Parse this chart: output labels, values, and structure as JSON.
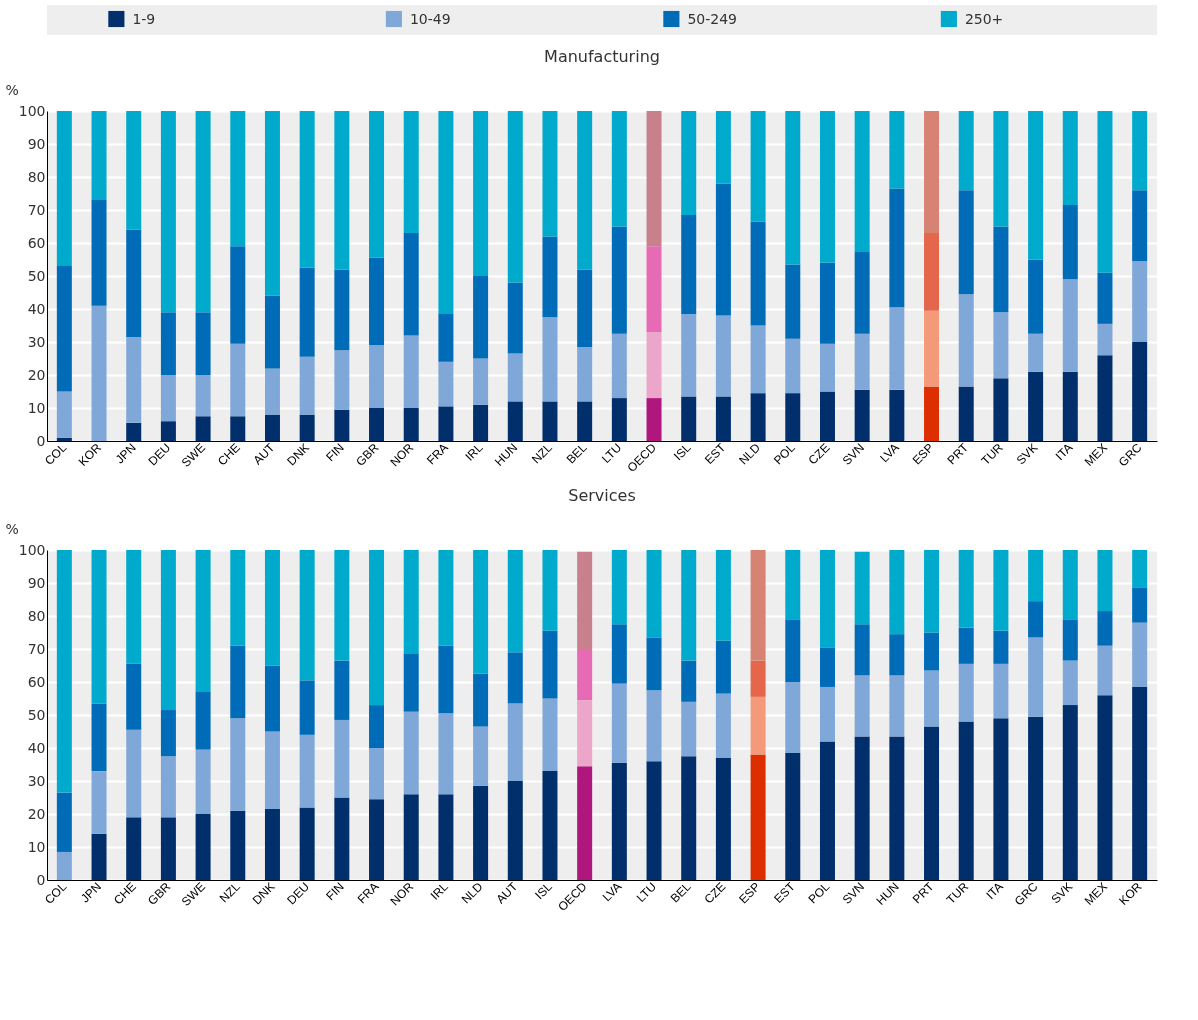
{
  "chart_data": [
    {
      "type": "bar",
      "title": "Manufacturing",
      "ylabel": "%",
      "stacked": true,
      "legend": "top",
      "grid": "y",
      "ylim": [
        0,
        100
      ],
      "yticks": [
        0,
        10,
        20,
        30,
        40,
        50,
        60,
        70,
        80,
        90,
        100
      ],
      "categories": [
        "COL",
        "KOR",
        "JPN",
        "DEU",
        "SWE",
        "CHE",
        "AUT",
        "DNK",
        "FIN",
        "GBR",
        "NOR",
        "FRA",
        "IRL",
        "HUN",
        "NZL",
        "BEL",
        "LTU",
        "OECD",
        "ISL",
        "EST",
        "NLD",
        "POL",
        "CZE",
        "SVN",
        "LVA",
        "ESP",
        "PRT",
        "TUR",
        "SVK",
        "ITA",
        "MEX",
        "GRC"
      ],
      "series": [
        {
          "name": "1-9",
          "color": "#002f6c",
          "colors": [
            "#002f6c",
            "#002f6c",
            "#002f6c",
            "#002f6c",
            "#002f6c",
            "#002f6c",
            "#002f6c",
            "#002f6c",
            "#002f6c",
            "#002f6c",
            "#002f6c",
            "#002f6c",
            "#002f6c",
            "#002f6c",
            "#002f6c",
            "#002f6c",
            "#002f6c",
            "#b0177e",
            "#002f6c",
            "#002f6c",
            "#002f6c",
            "#002f6c",
            "#002f6c",
            "#002f6c",
            "#002f6c",
            "#dd2e00",
            "#002f6c",
            "#002f6c",
            "#002f6c",
            "#002f6c",
            "#002f6c",
            "#002f6c"
          ],
          "values": [
            1,
            0,
            5.5,
            6,
            7.5,
            7.5,
            8,
            8,
            9.5,
            10,
            10,
            10.5,
            11,
            12,
            12,
            12,
            13,
            13,
            13.5,
            13.5,
            14.5,
            14.5,
            15,
            15.5,
            15.5,
            16.5,
            16.5,
            19,
            21,
            21,
            26,
            30
          ]
        },
        {
          "name": "10-49",
          "color": "#7fa8d9",
          "colors": [
            "#7fa8d9",
            "#7fa8d9",
            "#7fa8d9",
            "#7fa8d9",
            "#7fa8d9",
            "#7fa8d9",
            "#7fa8d9",
            "#7fa8d9",
            "#7fa8d9",
            "#7fa8d9",
            "#7fa8d9",
            "#7fa8d9",
            "#7fa8d9",
            "#7fa8d9",
            "#7fa8d9",
            "#7fa8d9",
            "#7fa8d9",
            "#eca6c9",
            "#7fa8d9",
            "#7fa8d9",
            "#7fa8d9",
            "#7fa8d9",
            "#7fa8d9",
            "#7fa8d9",
            "#7fa8d9",
            "#f5997b",
            "#7fa8d9",
            "#7fa8d9",
            "#7fa8d9",
            "#7fa8d9",
            "#7fa8d9",
            "#7fa8d9"
          ],
          "values": [
            14,
            41,
            26,
            14,
            12.5,
            22,
            14,
            17.5,
            18,
            19,
            22,
            13.5,
            14,
            14.5,
            25.5,
            16.5,
            19.5,
            20,
            25,
            24.5,
            20.5,
            16.5,
            14.5,
            17,
            25,
            23,
            28,
            20,
            11.5,
            28,
            9.5,
            24.5
          ]
        },
        {
          "name": "50-249",
          "color": "#006bb6",
          "colors": [
            "#006bb6",
            "#006bb6",
            "#006bb6",
            "#006bb6",
            "#006bb6",
            "#006bb6",
            "#006bb6",
            "#006bb6",
            "#006bb6",
            "#006bb6",
            "#006bb6",
            "#006bb6",
            "#006bb6",
            "#006bb6",
            "#006bb6",
            "#006bb6",
            "#006bb6",
            "#e76ab4",
            "#006bb6",
            "#006bb6",
            "#006bb6",
            "#006bb6",
            "#006bb6",
            "#006bb6",
            "#006bb6",
            "#e4664b",
            "#006bb6",
            "#006bb6",
            "#006bb6",
            "#006bb6",
            "#006bb6",
            "#006bb6"
          ],
          "values": [
            38,
            32,
            32.5,
            19,
            19,
            29.5,
            22,
            27,
            24.5,
            26.5,
            31,
            14.5,
            25,
            21.5,
            24.5,
            23.5,
            32.5,
            26,
            30,
            40,
            31.5,
            22.5,
            24.5,
            25,
            36,
            23.5,
            31.5,
            26,
            22.5,
            22.5,
            15.5,
            21.5
          ]
        },
        {
          "name": "250+",
          "color": "#00aacc",
          "colors": [
            "#00aacc",
            "#00aacc",
            "#00aacc",
            "#00aacc",
            "#00aacc",
            "#00aacc",
            "#00aacc",
            "#00aacc",
            "#00aacc",
            "#00aacc",
            "#00aacc",
            "#00aacc",
            "#00aacc",
            "#00aacc",
            "#00aacc",
            "#00aacc",
            "#00aacc",
            "#c8818c",
            "#00aacc",
            "#00aacc",
            "#00aacc",
            "#00aacc",
            "#00aacc",
            "#00aacc",
            "#00aacc",
            "#d68373",
            "#00aacc",
            "#00aacc",
            "#00aacc",
            "#00aacc",
            "#00aacc",
            "#00aacc"
          ],
          "values": [
            47,
            27,
            36,
            61,
            61,
            41,
            56,
            47.5,
            48,
            44.5,
            37,
            61.5,
            50,
            52,
            38,
            48,
            35,
            41,
            31.5,
            22,
            33.5,
            46.5,
            46,
            42.5,
            23.5,
            37,
            24,
            35,
            45,
            28.5,
            49,
            24
          ]
        }
      ]
    },
    {
      "type": "bar",
      "title": "Services",
      "ylabel": "%",
      "stacked": true,
      "legend": false,
      "grid": "y",
      "ylim": [
        0,
        100
      ],
      "yticks": [
        0,
        10,
        20,
        30,
        40,
        50,
        60,
        70,
        80,
        90,
        100
      ],
      "categories": [
        "COL",
        "JPN",
        "CHE",
        "GBR",
        "SWE",
        "NZL",
        "DNK",
        "DEU",
        "FIN",
        "FRA",
        "NOR",
        "IRL",
        "NLD",
        "AUT",
        "ISL",
        "OECD",
        "LVA",
        "LTU",
        "BEL",
        "CZE",
        "ESP",
        "EST",
        "POL",
        "SVN",
        "HUN",
        "PRT",
        "TUR",
        "ITA",
        "GRC",
        "SVK",
        "MEX",
        "KOR"
      ],
      "series": [
        {
          "colors": [
            "#002f6c",
            "#002f6c",
            "#002f6c",
            "#002f6c",
            "#002f6c",
            "#002f6c",
            "#002f6c",
            "#002f6c",
            "#002f6c",
            "#002f6c",
            "#002f6c",
            "#002f6c",
            "#002f6c",
            "#002f6c",
            "#002f6c",
            "#b0177e",
            "#002f6c",
            "#002f6c",
            "#002f6c",
            "#002f6c",
            "#dd2e00",
            "#002f6c",
            "#002f6c",
            "#002f6c",
            "#002f6c",
            "#002f6c",
            "#002f6c",
            "#002f6c",
            "#002f6c",
            "#002f6c",
            "#002f6c",
            "#002f6c"
          ],
          "values": [
            0,
            14,
            19,
            19,
            20,
            21,
            21.5,
            22,
            25,
            24.5,
            26,
            26,
            28.5,
            30,
            33,
            34.5,
            35.5,
            36,
            37.5,
            37,
            38,
            38.5,
            42,
            43.5,
            43.5,
            46.5,
            48,
            49,
            49.5,
            53,
            56,
            58.5
          ]
        },
        {
          "colors": [
            "#7fa8d9",
            "#7fa8d9",
            "#7fa8d9",
            "#7fa8d9",
            "#7fa8d9",
            "#7fa8d9",
            "#7fa8d9",
            "#7fa8d9",
            "#7fa8d9",
            "#7fa8d9",
            "#7fa8d9",
            "#7fa8d9",
            "#7fa8d9",
            "#7fa8d9",
            "#7fa8d9",
            "#eca6c9",
            "#7fa8d9",
            "#7fa8d9",
            "#7fa8d9",
            "#7fa8d9",
            "#f5997b",
            "#7fa8d9",
            "#7fa8d9",
            "#7fa8d9",
            "#7fa8d9",
            "#7fa8d9",
            "#7fa8d9",
            "#7fa8d9",
            "#7fa8d9",
            "#7fa8d9",
            "#7fa8d9",
            "#7fa8d9"
          ],
          "values": [
            8.5,
            19,
            26.5,
            18.5,
            19.5,
            28,
            23.5,
            22,
            23.5,
            15.5,
            25,
            24.5,
            18,
            23.5,
            22,
            20,
            24,
            21.5,
            16.5,
            19.5,
            17.5,
            21.5,
            16.5,
            18.5,
            18.5,
            17,
            17.5,
            16.5,
            24,
            13.5,
            15,
            19.5
          ]
        },
        {
          "colors": [
            "#006bb6",
            "#006bb6",
            "#006bb6",
            "#006bb6",
            "#006bb6",
            "#006bb6",
            "#006bb6",
            "#006bb6",
            "#006bb6",
            "#006bb6",
            "#006bb6",
            "#006bb6",
            "#006bb6",
            "#006bb6",
            "#006bb6",
            "#e76ab4",
            "#006bb6",
            "#006bb6",
            "#006bb6",
            "#006bb6",
            "#e4664b",
            "#006bb6",
            "#006bb6",
            "#006bb6",
            "#006bb6",
            "#006bb6",
            "#006bb6",
            "#006bb6",
            "#006bb6",
            "#006bb6",
            "#006bb6",
            "#006bb6"
          ],
          "values": [
            18,
            20.5,
            20,
            14,
            17.5,
            22,
            20,
            16.5,
            18,
            13,
            17.5,
            20.5,
            16,
            15.5,
            20.5,
            15.5,
            18,
            16,
            12.5,
            16,
            11,
            19,
            12,
            15.5,
            12.5,
            11.5,
            11,
            10,
            11,
            12.5,
            10.5,
            10.5
          ]
        },
        {
          "colors": [
            "#00aacc",
            "#00aacc",
            "#00aacc",
            "#00aacc",
            "#00aacc",
            "#00aacc",
            "#00aacc",
            "#00aacc",
            "#00aacc",
            "#00aacc",
            "#00aacc",
            "#00aacc",
            "#00aacc",
            "#00aacc",
            "#00aacc",
            "#c8818c",
            "#00aacc",
            "#00aacc",
            "#00aacc",
            "#00aacc",
            "#d68373",
            "#00aacc",
            "#00aacc",
            "#00aacc",
            "#00aacc",
            "#00aacc",
            "#00aacc",
            "#00aacc",
            "#00aacc",
            "#00aacc",
            "#00aacc",
            "#00aacc"
          ],
          "values": [
            73.5,
            46.5,
            34.5,
            48.5,
            43,
            29,
            35,
            39.5,
            33.5,
            47,
            31.5,
            29,
            37.5,
            31,
            24.5,
            29.5,
            22.5,
            26.5,
            33.5,
            27.5,
            33.5,
            21,
            29.5,
            22,
            25.5,
            25,
            23.5,
            24.5,
            15.5,
            21,
            18.5,
            11.5
          ]
        }
      ]
    }
  ]
}
